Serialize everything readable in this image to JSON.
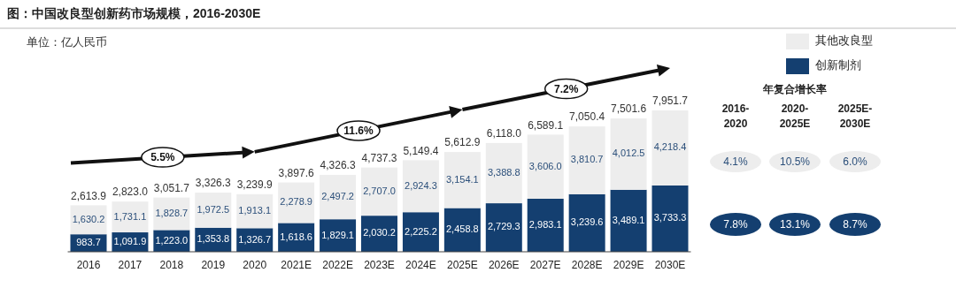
{
  "chart_data": {
    "type": "bar",
    "title": "图：中国改良型创新药市场规模，2016-2030E",
    "subtitle": "单位：亿人民币",
    "stacked": true,
    "legend": "top right",
    "categories": [
      "2016",
      "2017",
      "2018",
      "2019",
      "2020",
      "2021E",
      "2022E",
      "2023E",
      "2024E",
      "2025E",
      "2026E",
      "2027E",
      "2028E",
      "2029E",
      "2030E"
    ],
    "series": [
      {
        "name": "创新制剂",
        "color": "#143f70",
        "values": [
          983.7,
          1091.9,
          1223.0,
          1353.8,
          1326.7,
          1618.6,
          1829.1,
          2030.2,
          2225.2,
          2458.8,
          2729.3,
          2983.1,
          3239.6,
          3489.1,
          3733.3
        ],
        "value_labels": [
          "983.7",
          "1,091.9",
          "1,223.0",
          "1,353.8",
          "1,326.7",
          "1,618.6",
          "1,829.1",
          "2,030.2",
          "2,225.2",
          "2,458.8",
          "2,729.3",
          "2,983.1",
          "3,239.6",
          "3,489.1",
          "3,733.3"
        ]
      },
      {
        "name": "其他改良型",
        "color": "#ededed",
        "values": [
          1630.2,
          1731.1,
          1828.7,
          1972.5,
          1913.1,
          2278.9,
          2497.2,
          2707.0,
          2924.3,
          3154.1,
          3388.8,
          3606.0,
          3810.7,
          4012.5,
          4218.4
        ],
        "value_labels": [
          "1,630.2",
          "1,731.1",
          "1,828.7",
          "1,972.5",
          "1,913.1",
          "2,278.9",
          "2,497.2",
          "2,707.0",
          "2,924.3",
          "3,154.1",
          "3,388.8",
          "3,606.0",
          "3,810.7",
          "4,012.5",
          "4,218.4"
        ]
      }
    ],
    "totals": [
      "2,613.9",
      "2,823.0",
      "3,051.7",
      "3,326.3",
      "3,239.9",
      "3,897.6",
      "4,326.3",
      "4,737.3",
      "5,149.4",
      "5,612.9",
      "6,118.0",
      "6,589.1",
      "7,050.4",
      "7,501.6",
      "7,951.7"
    ],
    "annotations": [
      "5.5%",
      "11.6%",
      "7.2%",
      "年复合增长率",
      "2016-2020",
      "2020-2025E",
      "2025E-2030E",
      "4.1%",
      "10.5%",
      "6.0%",
      "7.8%",
      "13.1%",
      "8.7%"
    ]
  }
}
